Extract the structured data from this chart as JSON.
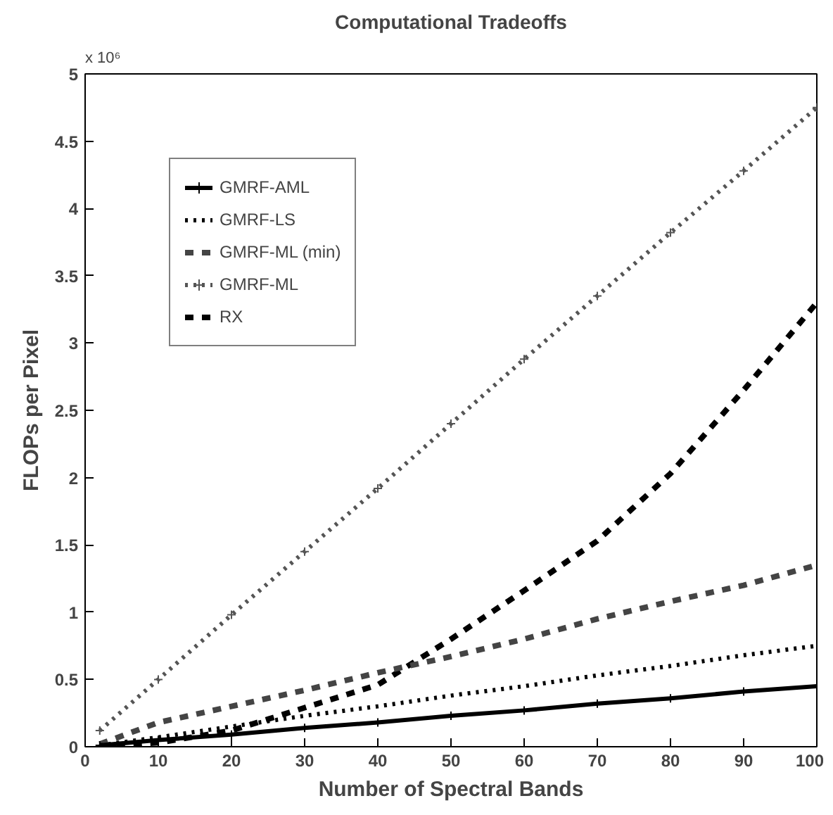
{
  "chart_data": {
    "type": "line",
    "title": "Computational Tradeoffs",
    "xlabel": "Number of Spectral Bands",
    "ylabel": "FLOPs per Pixel",
    "annotations": [
      "x 10⁶"
    ],
    "x": [
      2,
      10,
      20,
      30,
      40,
      50,
      60,
      70,
      80,
      90,
      100
    ],
    "series": [
      {
        "name": "GMRF-AML",
        "color": "#000000",
        "line_style": "solid",
        "marker": "cross",
        "values": [
          0.01,
          0.05,
          0.09,
          0.14,
          0.18,
          0.23,
          0.27,
          0.32,
          0.36,
          0.41,
          0.45
        ]
      },
      {
        "name": "GMRF-LS",
        "color": "#000000",
        "line_style": "dotted",
        "values": [
          0.01,
          0.07,
          0.15,
          0.23,
          0.3,
          0.38,
          0.45,
          0.53,
          0.6,
          0.68,
          0.75
        ]
      },
      {
        "name": "GMRF-ML (min)",
        "color": "#444444",
        "line_style": "dashed",
        "values": [
          0.02,
          0.18,
          0.3,
          0.42,
          0.55,
          0.67,
          0.8,
          0.95,
          1.08,
          1.2,
          1.35
        ]
      },
      {
        "name": "GMRF-ML",
        "color": "#555555",
        "line_style": "dotted",
        "marker": "cross",
        "values": [
          0.12,
          0.5,
          0.98,
          1.45,
          1.92,
          2.4,
          2.88,
          3.35,
          3.82,
          4.28,
          4.75
        ]
      },
      {
        "name": "RX",
        "color": "#000000",
        "line_style": "dashed",
        "values": [
          0.0,
          0.03,
          0.12,
          0.29,
          0.46,
          0.8,
          1.16,
          1.53,
          2.03,
          2.65,
          3.3
        ]
      }
    ],
    "xlim": [
      0,
      100
    ],
    "ylim": [
      0,
      5
    ],
    "xticks": [
      0,
      10,
      20,
      30,
      40,
      50,
      60,
      70,
      80,
      90,
      100
    ],
    "yticks": [
      0,
      0.5,
      1,
      1.5,
      2,
      2.5,
      3,
      3.5,
      4,
      4.5,
      5
    ],
    "grid": false,
    "legend": "top left"
  }
}
